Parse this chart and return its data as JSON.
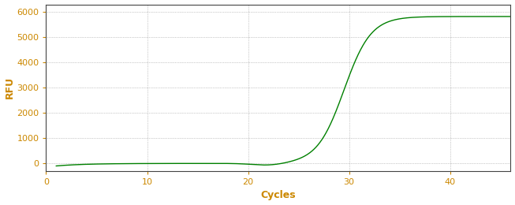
{
  "title": "",
  "xlabel": "Cycles",
  "ylabel": "RFU",
  "xlim": [
    0,
    46
  ],
  "ylim": [
    -300,
    6300
  ],
  "yticks": [
    0,
    1000,
    2000,
    3000,
    4000,
    5000,
    6000
  ],
  "xticks": [
    0,
    10,
    20,
    30,
    40
  ],
  "line_color": "#008000",
  "background_color": "#ffffff",
  "grid_color": "#000000",
  "tick_color": "#cc8800",
  "label_color": "#cc8800",
  "sigmoid_L": 5820,
  "sigmoid_k": 0.75,
  "sigmoid_x0": 29.5,
  "x_start": 1,
  "x_end": 46
}
